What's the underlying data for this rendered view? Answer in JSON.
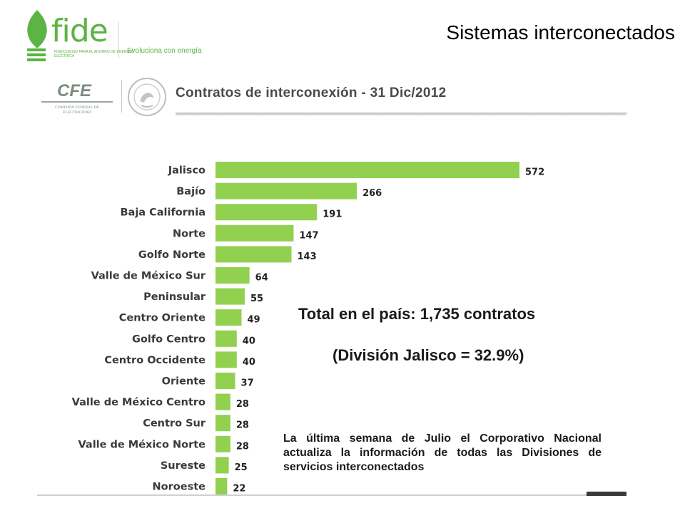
{
  "header": {
    "fide_logo_text": "fide",
    "fide_logo_subtext": "FIDEICOMISO PARA EL AHORRO DE ENERGÍA ELÉCTRICA",
    "fide_tagline": "Evoluciona con energía",
    "slide_title": "Sistemas interconectados"
  },
  "subheader": {
    "cfe_logo_text": "CFE",
    "cfe_subtext": "COMISIÓN FEDERAL DE ELECTRICIDAD",
    "title": "Contratos de interconexión -  31 Dic/2012"
  },
  "chart_data": {
    "type": "bar",
    "orientation": "horizontal",
    "categories": [
      "Jalisco",
      "Bajío",
      "Baja California",
      "Norte",
      "Golfo Norte",
      "Valle de México Sur",
      "Peninsular",
      "Centro Oriente",
      "Golfo Centro",
      "Centro Occidente",
      "Oriente",
      "Valle de México Centro",
      "Centro Sur",
      "Valle de México Norte",
      "Sureste",
      "Noroeste"
    ],
    "values": [
      572,
      266,
      191,
      147,
      143,
      64,
      55,
      49,
      40,
      40,
      37,
      28,
      28,
      28,
      25,
      22
    ],
    "bar_color": "#92d050",
    "title": "",
    "xlabel": "",
    "ylabel": ""
  },
  "annotations": {
    "total": "Total en el país: 1,735 contratos",
    "division": "(División Jalisco = 32.9%)",
    "note": "La última semana de Julio el Corporativo Nacional actualiza la información de todas las Divisiones de servicios interconectados"
  },
  "colors": {
    "fide_green": "#5bb443",
    "bar_green": "#92d050",
    "cfe_gray": "#7d8b80"
  }
}
